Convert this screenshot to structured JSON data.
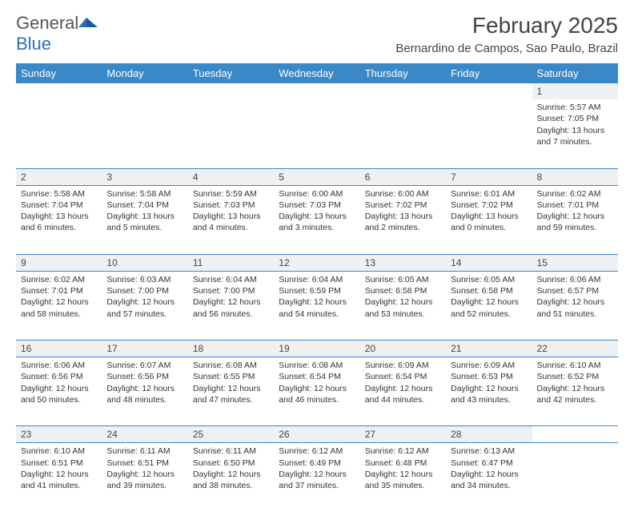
{
  "brand": {
    "word1": "General",
    "word2": "Blue"
  },
  "title": "February 2025",
  "location": "Bernardino de Campos, Sao Paulo, Brazil",
  "colors": {
    "header_bg": "#3b88c7",
    "header_text": "#ffffff",
    "daynum_bg": "#eef0f2",
    "border": "#3b88c7",
    "body_text": "#333333",
    "brand_gray": "#555555",
    "brand_blue": "#2a70b8"
  },
  "columns": [
    "Sunday",
    "Monday",
    "Tuesday",
    "Wednesday",
    "Thursday",
    "Friday",
    "Saturday"
  ],
  "weeks": [
    {
      "nums": [
        "",
        "",
        "",
        "",
        "",
        "",
        "1"
      ],
      "cells": [
        null,
        null,
        null,
        null,
        null,
        null,
        {
          "sunrise": "Sunrise: 5:57 AM",
          "sunset": "Sunset: 7:05 PM",
          "day1": "Daylight: 13 hours",
          "day2": "and 7 minutes."
        }
      ]
    },
    {
      "nums": [
        "2",
        "3",
        "4",
        "5",
        "6",
        "7",
        "8"
      ],
      "cells": [
        {
          "sunrise": "Sunrise: 5:58 AM",
          "sunset": "Sunset: 7:04 PM",
          "day1": "Daylight: 13 hours",
          "day2": "and 6 minutes."
        },
        {
          "sunrise": "Sunrise: 5:58 AM",
          "sunset": "Sunset: 7:04 PM",
          "day1": "Daylight: 13 hours",
          "day2": "and 5 minutes."
        },
        {
          "sunrise": "Sunrise: 5:59 AM",
          "sunset": "Sunset: 7:03 PM",
          "day1": "Daylight: 13 hours",
          "day2": "and 4 minutes."
        },
        {
          "sunrise": "Sunrise: 6:00 AM",
          "sunset": "Sunset: 7:03 PM",
          "day1": "Daylight: 13 hours",
          "day2": "and 3 minutes."
        },
        {
          "sunrise": "Sunrise: 6:00 AM",
          "sunset": "Sunset: 7:02 PM",
          "day1": "Daylight: 13 hours",
          "day2": "and 2 minutes."
        },
        {
          "sunrise": "Sunrise: 6:01 AM",
          "sunset": "Sunset: 7:02 PM",
          "day1": "Daylight: 13 hours",
          "day2": "and 0 minutes."
        },
        {
          "sunrise": "Sunrise: 6:02 AM",
          "sunset": "Sunset: 7:01 PM",
          "day1": "Daylight: 12 hours",
          "day2": "and 59 minutes."
        }
      ]
    },
    {
      "nums": [
        "9",
        "10",
        "11",
        "12",
        "13",
        "14",
        "15"
      ],
      "cells": [
        {
          "sunrise": "Sunrise: 6:02 AM",
          "sunset": "Sunset: 7:01 PM",
          "day1": "Daylight: 12 hours",
          "day2": "and 58 minutes."
        },
        {
          "sunrise": "Sunrise: 6:03 AM",
          "sunset": "Sunset: 7:00 PM",
          "day1": "Daylight: 12 hours",
          "day2": "and 57 minutes."
        },
        {
          "sunrise": "Sunrise: 6:04 AM",
          "sunset": "Sunset: 7:00 PM",
          "day1": "Daylight: 12 hours",
          "day2": "and 56 minutes."
        },
        {
          "sunrise": "Sunrise: 6:04 AM",
          "sunset": "Sunset: 6:59 PM",
          "day1": "Daylight: 12 hours",
          "day2": "and 54 minutes."
        },
        {
          "sunrise": "Sunrise: 6:05 AM",
          "sunset": "Sunset: 6:58 PM",
          "day1": "Daylight: 12 hours",
          "day2": "and 53 minutes."
        },
        {
          "sunrise": "Sunrise: 6:05 AM",
          "sunset": "Sunset: 6:58 PM",
          "day1": "Daylight: 12 hours",
          "day2": "and 52 minutes."
        },
        {
          "sunrise": "Sunrise: 6:06 AM",
          "sunset": "Sunset: 6:57 PM",
          "day1": "Daylight: 12 hours",
          "day2": "and 51 minutes."
        }
      ]
    },
    {
      "nums": [
        "16",
        "17",
        "18",
        "19",
        "20",
        "21",
        "22"
      ],
      "cells": [
        {
          "sunrise": "Sunrise: 6:06 AM",
          "sunset": "Sunset: 6:56 PM",
          "day1": "Daylight: 12 hours",
          "day2": "and 50 minutes."
        },
        {
          "sunrise": "Sunrise: 6:07 AM",
          "sunset": "Sunset: 6:56 PM",
          "day1": "Daylight: 12 hours",
          "day2": "and 48 minutes."
        },
        {
          "sunrise": "Sunrise: 6:08 AM",
          "sunset": "Sunset: 6:55 PM",
          "day1": "Daylight: 12 hours",
          "day2": "and 47 minutes."
        },
        {
          "sunrise": "Sunrise: 6:08 AM",
          "sunset": "Sunset: 6:54 PM",
          "day1": "Daylight: 12 hours",
          "day2": "and 46 minutes."
        },
        {
          "sunrise": "Sunrise: 6:09 AM",
          "sunset": "Sunset: 6:54 PM",
          "day1": "Daylight: 12 hours",
          "day2": "and 44 minutes."
        },
        {
          "sunrise": "Sunrise: 6:09 AM",
          "sunset": "Sunset: 6:53 PM",
          "day1": "Daylight: 12 hours",
          "day2": "and 43 minutes."
        },
        {
          "sunrise": "Sunrise: 6:10 AM",
          "sunset": "Sunset: 6:52 PM",
          "day1": "Daylight: 12 hours",
          "day2": "and 42 minutes."
        }
      ]
    },
    {
      "nums": [
        "23",
        "24",
        "25",
        "26",
        "27",
        "28",
        ""
      ],
      "cells": [
        {
          "sunrise": "Sunrise: 6:10 AM",
          "sunset": "Sunset: 6:51 PM",
          "day1": "Daylight: 12 hours",
          "day2": "and 41 minutes."
        },
        {
          "sunrise": "Sunrise: 6:11 AM",
          "sunset": "Sunset: 6:51 PM",
          "day1": "Daylight: 12 hours",
          "day2": "and 39 minutes."
        },
        {
          "sunrise": "Sunrise: 6:11 AM",
          "sunset": "Sunset: 6:50 PM",
          "day1": "Daylight: 12 hours",
          "day2": "and 38 minutes."
        },
        {
          "sunrise": "Sunrise: 6:12 AM",
          "sunset": "Sunset: 6:49 PM",
          "day1": "Daylight: 12 hours",
          "day2": "and 37 minutes."
        },
        {
          "sunrise": "Sunrise: 6:12 AM",
          "sunset": "Sunset: 6:48 PM",
          "day1": "Daylight: 12 hours",
          "day2": "and 35 minutes."
        },
        {
          "sunrise": "Sunrise: 6:13 AM",
          "sunset": "Sunset: 6:47 PM",
          "day1": "Daylight: 12 hours",
          "day2": "and 34 minutes."
        },
        null
      ]
    }
  ]
}
